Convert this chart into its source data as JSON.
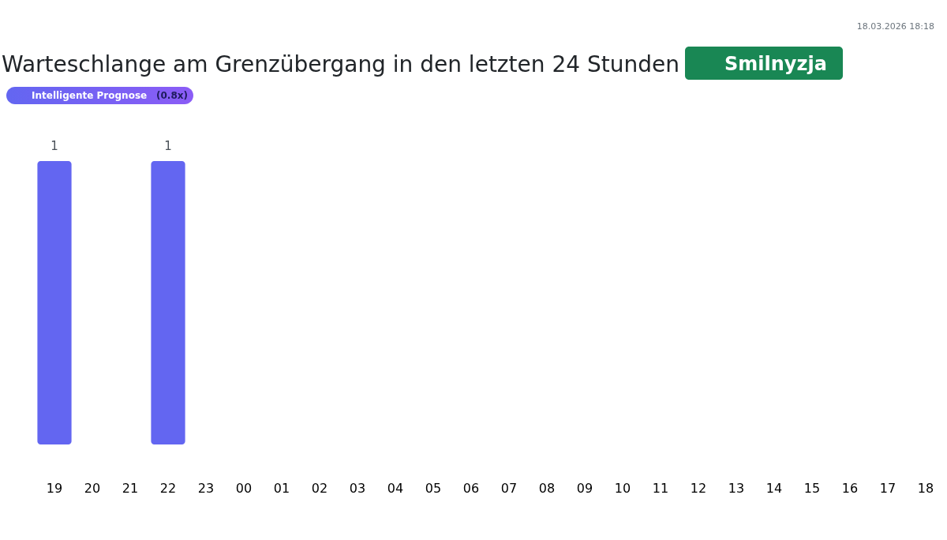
{
  "chart_data": {
    "type": "bar",
    "title": "Warteschlange am Grenzübergang in den letzten 24 Stunden",
    "subtitle": "Smilnyzja",
    "annotations": [
      "Intelligente Prognose",
      "(0.8x)",
      "18.03.2026 18:18"
    ],
    "categories": [
      "19",
      "20",
      "21",
      "22",
      "23",
      "00",
      "01",
      "02",
      "03",
      "04",
      "05",
      "06",
      "07",
      "08",
      "09",
      "10",
      "11",
      "12",
      "13",
      "14",
      "15",
      "16",
      "17",
      "18"
    ],
    "values": [
      1,
      0,
      0,
      1,
      0,
      0,
      0,
      0,
      0,
      0,
      0,
      0,
      0,
      0,
      0,
      0,
      0,
      0,
      0,
      0,
      0,
      0,
      0,
      0
    ],
    "value_labels": [
      "1",
      null,
      null,
      "1",
      null,
      null,
      null,
      null,
      null,
      null,
      null,
      null,
      null,
      null,
      null,
      null,
      null,
      null,
      null,
      null,
      null,
      null,
      null,
      null
    ],
    "color": "#6366f1"
  }
}
